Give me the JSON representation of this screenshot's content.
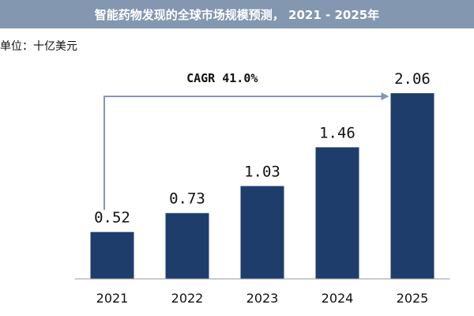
{
  "chart_data": {
    "type": "bar",
    "title": "智能药物发现的全球市场规模预测， 2021 - 2025年",
    "unit": "单位：十亿美元",
    "categories": [
      "2021",
      "2022",
      "2023",
      "2024",
      "2025"
    ],
    "values": [
      0.52,
      0.73,
      1.03,
      1.46,
      2.06
    ],
    "value_labels": [
      "0.52",
      "0.73",
      "1.03",
      "1.46",
      "2.06"
    ],
    "ylim": [
      0,
      2.06
    ],
    "annotation": "CAGR 41.0%",
    "bar_color": "#1f3d6b",
    "arrow_color": "#8497b0",
    "title_bg_color": "#8497b0",
    "grid": false
  }
}
